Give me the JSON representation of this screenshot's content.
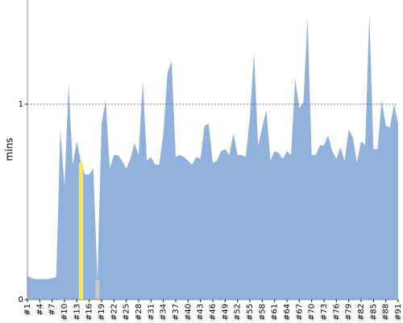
{
  "chart_data": {
    "type": "area",
    "ylabel": "mins",
    "categories": [
      "#1",
      null,
      null,
      "#4",
      null,
      null,
      "#7",
      null,
      null,
      "#10",
      null,
      null,
      "#13",
      null,
      null,
      "#16",
      null,
      null,
      "#19",
      null,
      null,
      "#22",
      null,
      null,
      "#25",
      null,
      null,
      "#28",
      null,
      null,
      "#31",
      null,
      null,
      "#34",
      null,
      null,
      "#37",
      null,
      null,
      "#40",
      null,
      null,
      "#43",
      null,
      null,
      "#46",
      null,
      null,
      "#49",
      null,
      null,
      "#52",
      null,
      null,
      "#55",
      null,
      null,
      "#58",
      null,
      null,
      "#61",
      null,
      null,
      "#64",
      null,
      null,
      "#67",
      null,
      null,
      "#70",
      null,
      null,
      "#73",
      null,
      null,
      "#76",
      null,
      null,
      "#79",
      null,
      null,
      "#82",
      null,
      null,
      "#85",
      null,
      null,
      "#88",
      null,
      null,
      "#91"
    ],
    "values": [
      0.12,
      0.11,
      0.105,
      0.105,
      0.105,
      0.105,
      0.11,
      0.115,
      0.87,
      0.58,
      1.1,
      0.69,
      0.81,
      0.7,
      0.64,
      0.64,
      0.67,
      0.1,
      0.9,
      1.02,
      0.67,
      0.74,
      0.74,
      0.71,
      0.67,
      0.72,
      0.8,
      0.74,
      1.12,
      0.71,
      0.73,
      0.69,
      0.69,
      0.85,
      1.16,
      1.22,
      0.73,
      0.74,
      0.73,
      0.71,
      0.69,
      0.73,
      0.72,
      0.89,
      0.9,
      0.7,
      0.71,
      0.76,
      0.77,
      0.74,
      0.85,
      0.74,
      0.74,
      0.73,
      0.93,
      1.26,
      0.79,
      0.88,
      0.97,
      0.71,
      0.76,
      0.75,
      0.72,
      0.76,
      0.74,
      1.13,
      0.98,
      1.01,
      1.44,
      0.74,
      0.74,
      0.79,
      0.79,
      0.84,
      0.76,
      0.72,
      0.78,
      0.71,
      0.87,
      0.83,
      0.7,
      0.81,
      0.79,
      1.46,
      0.77,
      0.77,
      1.02,
      0.89,
      0.88,
      1.0,
      0.9
    ],
    "color": "#8fb1db",
    "point_colors": [
      null,
      null,
      null,
      null,
      null,
      null,
      null,
      null,
      null,
      null,
      null,
      null,
      null,
      "#ffe95a",
      null,
      null,
      null,
      "#c8c8c8",
      null,
      null,
      null,
      null,
      null,
      null,
      null,
      null,
      null,
      null,
      null,
      null,
      null,
      null,
      null,
      null,
      null,
      null,
      null,
      null,
      null,
      null,
      null,
      null,
      null,
      null,
      null,
      null,
      null,
      null,
      null,
      null,
      null,
      null,
      null,
      null,
      null,
      null,
      null,
      null,
      null,
      null,
      null,
      null,
      null,
      null,
      null,
      null,
      null,
      null,
      null,
      null,
      null,
      null,
      null,
      null,
      null,
      null,
      null,
      null,
      null,
      null,
      null,
      null,
      null,
      null,
      null,
      null,
      null,
      null,
      null,
      null,
      null
    ],
    "ylim": [
      0,
      1.533
    ],
    "yticks": [
      0,
      1
    ],
    "grid": true
  }
}
